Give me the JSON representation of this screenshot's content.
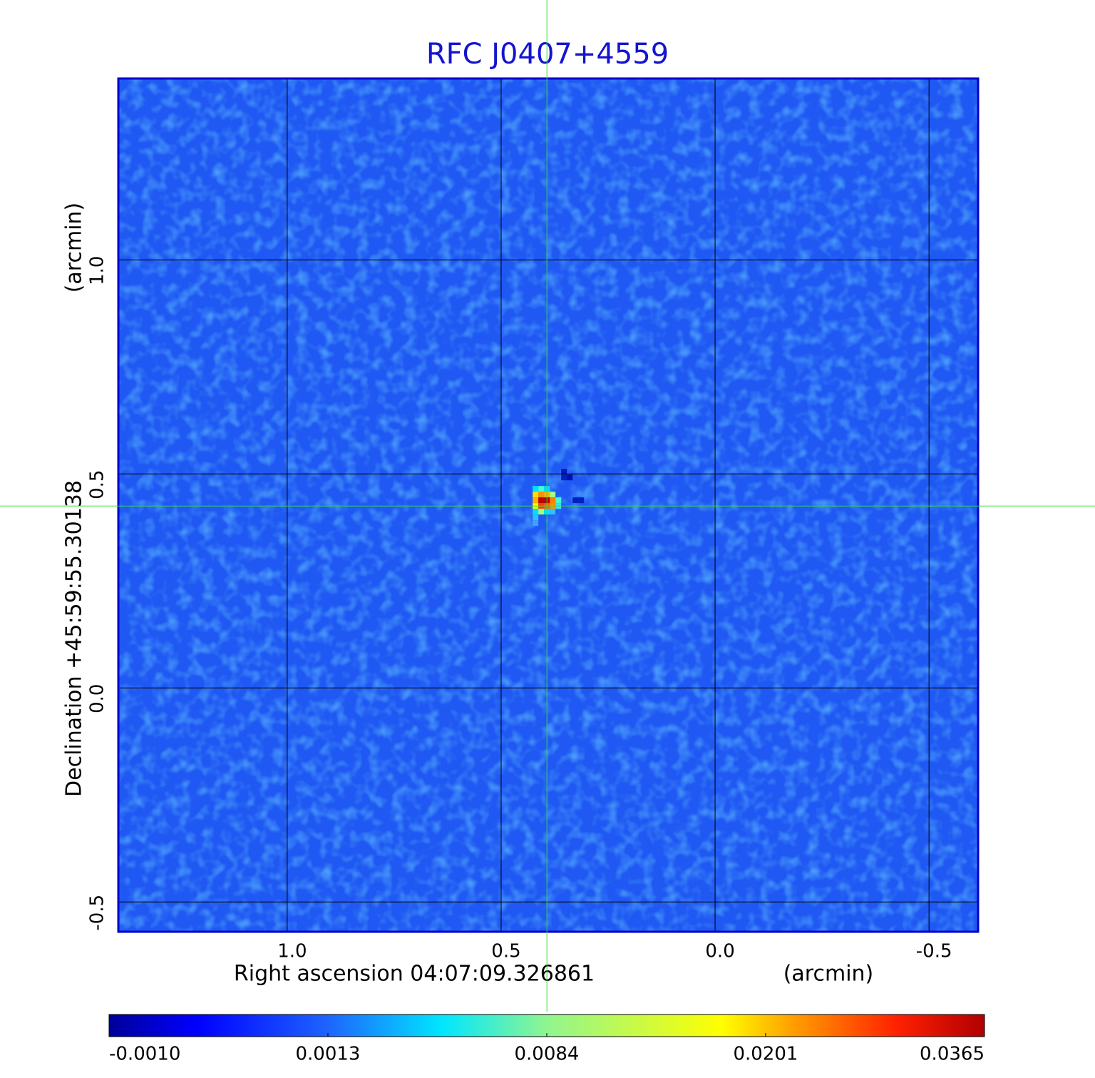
{
  "chart_data": {
    "type": "image",
    "title": "RFC J0407+4559",
    "x_label": "Right ascension  04:07:09.326861",
    "x_unit": "(arcmin)",
    "y_label": "Declination  +45:59:55.30138",
    "y_unit": "(arcmin)",
    "xlim": [
      1.393,
      -0.613
    ],
    "ylim": [
      -0.568,
      1.422
    ],
    "xticks": [
      {
        "value": 1,
        "label": "1.0"
      },
      {
        "value": 0.5,
        "label": "0.5"
      },
      {
        "value": 0,
        "label": "0.0"
      },
      {
        "value": -0.5,
        "label": "-0.5"
      }
    ],
    "yticks": [
      {
        "value": 1,
        "label": "1.0"
      },
      {
        "value": 0.5,
        "label": "0.5"
      },
      {
        "value": 0,
        "label": "0.0"
      },
      {
        "value": -0.5,
        "label": "-0.5"
      }
    ],
    "grid": true,
    "crosshair": {
      "x": 0.393,
      "y": 0.425
    },
    "colorbar": {
      "ticks": [
        {
          "value": -0.001,
          "label": "-0.0010"
        },
        0.0013,
        0.0084,
        0.0201,
        0.0365
      ]
    }
  }
}
